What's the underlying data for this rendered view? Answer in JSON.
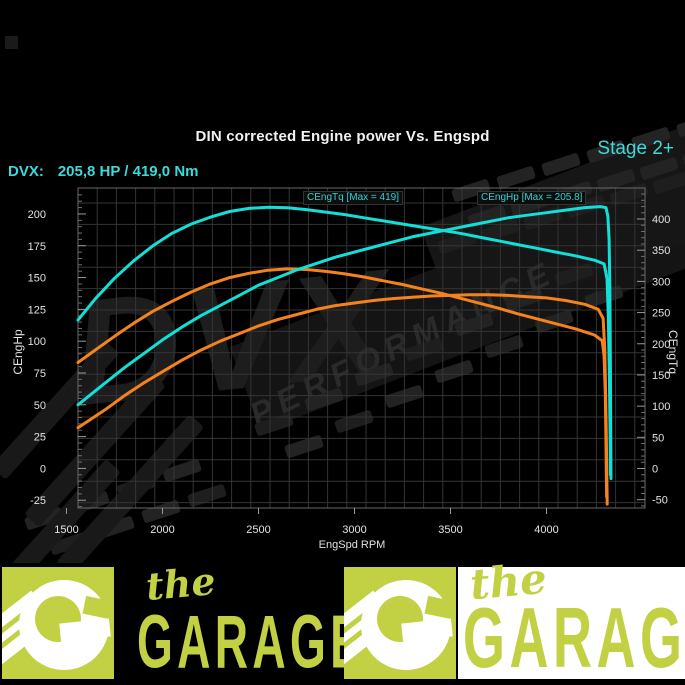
{
  "header": {
    "title": "DIN corrected Engine power Vs. Engspd",
    "stage_label": "Stage 2+",
    "result_label": "DVX:",
    "result_value": "205,8 HP / 419,0 Nm"
  },
  "watermark": {
    "brand": "DVX",
    "word": "PERFORMANCE"
  },
  "chart_data": {
    "type": "line",
    "title": "DIN corrected Engine power Vs. Engspd",
    "xlabel": "EngSpd RPM",
    "ylabel_left": "CEngHp",
    "ylabel_right": "CEngTq",
    "grid": true,
    "x_range": [
      1560,
      4513
    ],
    "y_left_range": [
      -31.1,
      220.4
    ],
    "y_right_range": [
      -63.3,
      449.7
    ],
    "x_ticks": [
      1500,
      2000,
      2500,
      3000,
      3500,
      4000
    ],
    "y_left_ticks": [
      200,
      175,
      150,
      125,
      100,
      75,
      50,
      25,
      0,
      -25
    ],
    "y_right_ticks": [
      400,
      350,
      300,
      250,
      200,
      150,
      100,
      50,
      0,
      -50
    ],
    "annotations": [
      {
        "text": "CEngTq [Max = 419]"
      },
      {
        "text": "CEngHp [Max = 205.8]"
      }
    ],
    "series": [
      {
        "name": "CEngTq original",
        "axis": "right",
        "color": "#f5831d",
        "points": [
          [
            1560,
            170
          ],
          [
            1650,
            190
          ],
          [
            1750,
            212
          ],
          [
            1850,
            233
          ],
          [
            1950,
            252
          ],
          [
            2050,
            268
          ],
          [
            2150,
            283
          ],
          [
            2250,
            296
          ],
          [
            2350,
            306
          ],
          [
            2450,
            313
          ],
          [
            2550,
            318
          ],
          [
            2650,
            320
          ],
          [
            2750,
            319
          ],
          [
            2850,
            316
          ],
          [
            2950,
            312
          ],
          [
            3050,
            307
          ],
          [
            3150,
            301
          ],
          [
            3250,
            295
          ],
          [
            3350,
            288
          ],
          [
            3450,
            281
          ],
          [
            3550,
            273
          ],
          [
            3650,
            265
          ],
          [
            3750,
            257
          ],
          [
            3850,
            248
          ],
          [
            3950,
            240
          ],
          [
            4050,
            232
          ],
          [
            4150,
            224
          ],
          [
            4250,
            214
          ],
          [
            4290,
            205
          ],
          [
            4300,
            180
          ],
          [
            4306,
            120
          ],
          [
            4310,
            40
          ],
          [
            4313,
            -45
          ]
        ]
      },
      {
        "name": "CEngHp original",
        "axis": "left",
        "color": "#f5831d",
        "points": [
          [
            1560,
            32
          ],
          [
            1700,
            46
          ],
          [
            1800,
            57
          ],
          [
            1900,
            67
          ],
          [
            2000,
            76
          ],
          [
            2100,
            85
          ],
          [
            2200,
            93
          ],
          [
            2300,
            100
          ],
          [
            2400,
            106
          ],
          [
            2500,
            112
          ],
          [
            2600,
            117
          ],
          [
            2700,
            121
          ],
          [
            2800,
            125
          ],
          [
            2900,
            128
          ],
          [
            3000,
            130
          ],
          [
            3100,
            132
          ],
          [
            3200,
            133.5
          ],
          [
            3300,
            134.5
          ],
          [
            3400,
            135.5
          ],
          [
            3500,
            136
          ],
          [
            3600,
            136.5
          ],
          [
            3700,
            136.5
          ],
          [
            3800,
            136
          ],
          [
            3900,
            135
          ],
          [
            4000,
            134
          ],
          [
            4100,
            132
          ],
          [
            4200,
            129
          ],
          [
            4270,
            125
          ],
          [
            4295,
            118
          ],
          [
            4303,
            95
          ],
          [
            4308,
            60
          ],
          [
            4312,
            20
          ],
          [
            4316,
            -28
          ]
        ]
      },
      {
        "name": "CEngTq Stage 2+",
        "axis": "right",
        "color": "#12dfd8",
        "points": [
          [
            1560,
            238
          ],
          [
            1650,
            272
          ],
          [
            1750,
            305
          ],
          [
            1850,
            333
          ],
          [
            1950,
            357
          ],
          [
            2050,
            377
          ],
          [
            2150,
            392
          ],
          [
            2250,
            403
          ],
          [
            2350,
            412
          ],
          [
            2450,
            417
          ],
          [
            2550,
            419
          ],
          [
            2650,
            418
          ],
          [
            2750,
            415
          ],
          [
            2850,
            411
          ],
          [
            2950,
            407
          ],
          [
            3050,
            402
          ],
          [
            3150,
            397
          ],
          [
            3250,
            392
          ],
          [
            3350,
            387
          ],
          [
            3450,
            382
          ],
          [
            3550,
            377
          ],
          [
            3650,
            371
          ],
          [
            3750,
            365
          ],
          [
            3850,
            359
          ],
          [
            3950,
            353
          ],
          [
            4050,
            347
          ],
          [
            4150,
            341
          ],
          [
            4250,
            334
          ],
          [
            4300,
            328
          ],
          [
            4315,
            305
          ],
          [
            4322,
            245
          ],
          [
            4327,
            155
          ],
          [
            4331,
            55
          ],
          [
            4333,
            -10
          ]
        ]
      },
      {
        "name": "CEngHp Stage 2+",
        "axis": "left",
        "color": "#12dfd8",
        "points": [
          [
            1560,
            50
          ],
          [
            1700,
            67
          ],
          [
            1800,
            79
          ],
          [
            1900,
            90
          ],
          [
            2000,
            101
          ],
          [
            2100,
            111
          ],
          [
            2200,
            120
          ],
          [
            2300,
            128
          ],
          [
            2400,
            136
          ],
          [
            2500,
            144
          ],
          [
            2600,
            150
          ],
          [
            2700,
            156
          ],
          [
            2800,
            161
          ],
          [
            2900,
            166
          ],
          [
            3000,
            170
          ],
          [
            3100,
            174
          ],
          [
            3200,
            178
          ],
          [
            3300,
            182
          ],
          [
            3400,
            185
          ],
          [
            3500,
            188
          ],
          [
            3600,
            191
          ],
          [
            3700,
            194
          ],
          [
            3800,
            197
          ],
          [
            3900,
            199
          ],
          [
            4000,
            201
          ],
          [
            4100,
            203
          ],
          [
            4200,
            205
          ],
          [
            4280,
            205.8
          ],
          [
            4310,
            205
          ],
          [
            4320,
            198
          ],
          [
            4326,
            180
          ],
          [
            4330,
            140
          ],
          [
            4333,
            80
          ],
          [
            4335,
            20
          ],
          [
            4336,
            -8
          ]
        ]
      }
    ]
  },
  "logos": {
    "left": {
      "the": "the",
      "garage": "GARAGE"
    },
    "right": {
      "the": "the",
      "garage": "GARAGE"
    }
  },
  "colors": {
    "accent_cyan": "#3fd9d9",
    "curve_cyan": "#12dfd8",
    "curve_orange": "#f5831d",
    "lime": "#c2d144",
    "grid": "#343434"
  }
}
